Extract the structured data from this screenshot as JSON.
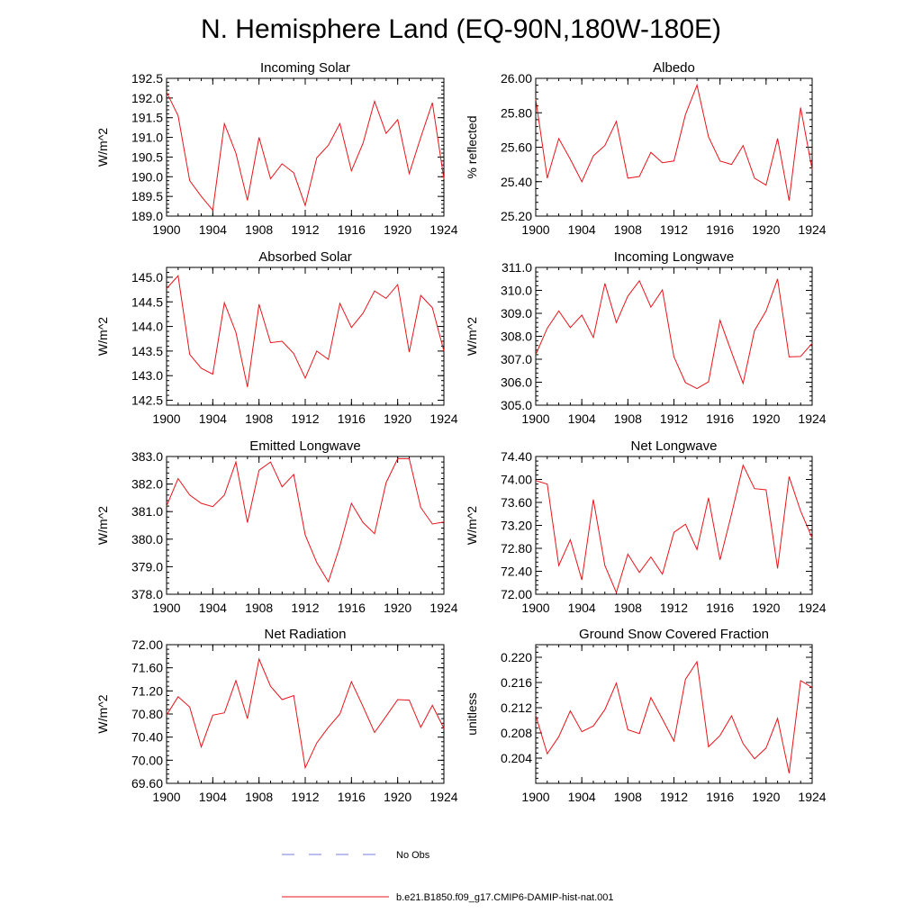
{
  "figure": {
    "title": "N. Hemisphere Land (EQ-90N,180W-180E)",
    "line_color": "#e8141b",
    "obs_color": "#7a7ae0",
    "legend": [
      {
        "label": "No Obs",
        "style": "dashed",
        "color": "#7a7ae0"
      },
      {
        "label": "b.e21.B1850.f09_g17.CMIP6-DAMIP-hist-nat.001",
        "style": "solid",
        "color": "#e8141b"
      }
    ]
  },
  "chart_data": [
    {
      "type": "line",
      "title": "Incoming Solar",
      "ylabel": "W/m^2",
      "xlim": [
        1900,
        1924
      ],
      "ylim": [
        189.0,
        192.5
      ],
      "xticks": [
        "1900",
        "1904",
        "1908",
        "1912",
        "1916",
        "1920",
        "1924"
      ],
      "yticks": [
        "189.0",
        "189.5",
        "190.0",
        "190.5",
        "191.0",
        "191.5",
        "192.0",
        "192.5"
      ],
      "x": [
        1900,
        1901,
        1902,
        1903,
        1904,
        1905,
        1906,
        1907,
        1908,
        1909,
        1910,
        1911,
        1912,
        1913,
        1914,
        1915,
        1916,
        1917,
        1918,
        1919,
        1920,
        1921,
        1922,
        1923,
        1924
      ],
      "series": [
        {
          "name": "b.e21.B1850.f09_g17.CMIP6-DAMIP-hist-nat.001",
          "values": [
            192.15,
            191.55,
            189.9,
            189.5,
            189.15,
            191.35,
            190.6,
            189.4,
            191.0,
            189.95,
            190.33,
            190.1,
            189.27,
            190.48,
            190.8,
            191.35,
            190.15,
            190.85,
            191.92,
            191.1,
            191.45,
            190.08,
            191.0,
            191.88,
            189.95
          ]
        }
      ]
    },
    {
      "type": "line",
      "title": "Albedo",
      "ylabel": "% reflected",
      "xlim": [
        1900,
        1924
      ],
      "ylim": [
        25.2,
        26.0
      ],
      "xticks": [
        "1900",
        "1904",
        "1908",
        "1912",
        "1916",
        "1920",
        "1924"
      ],
      "yticks": [
        "25.20",
        "25.40",
        "25.60",
        "25.80",
        "26.00"
      ],
      "x": [
        1900,
        1901,
        1902,
        1903,
        1904,
        1905,
        1906,
        1907,
        1908,
        1909,
        1910,
        1911,
        1912,
        1913,
        1914,
        1915,
        1916,
        1917,
        1918,
        1919,
        1920,
        1921,
        1922,
        1923,
        1924
      ],
      "series": [
        {
          "name": "b.e21.B1850.f09_g17.CMIP6-DAMIP-hist-nat.001",
          "values": [
            25.88,
            25.42,
            25.65,
            25.53,
            25.4,
            25.55,
            25.61,
            25.75,
            25.42,
            25.43,
            25.57,
            25.51,
            25.52,
            25.79,
            25.96,
            25.66,
            25.52,
            25.5,
            25.61,
            25.42,
            25.38,
            25.65,
            25.29,
            25.83,
            25.47
          ]
        }
      ]
    },
    {
      "type": "line",
      "title": "Absorbed Solar",
      "ylabel": "W/m^2",
      "xlim": [
        1900,
        1924
      ],
      "ylim": [
        142.4,
        145.2
      ],
      "xticks": [
        "1900",
        "1904",
        "1908",
        "1912",
        "1916",
        "1920",
        "1924"
      ],
      "yticks": [
        "142.5",
        "143.0",
        "143.5",
        "144.0",
        "144.5",
        "145.0"
      ],
      "x": [
        1900,
        1901,
        1902,
        1903,
        1904,
        1905,
        1906,
        1907,
        1908,
        1909,
        1910,
        1911,
        1912,
        1913,
        1914,
        1915,
        1916,
        1917,
        1918,
        1919,
        1920,
        1921,
        1922,
        1923,
        1924
      ],
      "series": [
        {
          "name": "b.e21.B1850.f09_g17.CMIP6-DAMIP-hist-nat.001",
          "values": [
            144.77,
            145.03,
            143.43,
            143.15,
            143.03,
            144.48,
            143.88,
            142.77,
            144.45,
            143.67,
            143.7,
            143.45,
            142.95,
            143.5,
            143.33,
            144.47,
            143.98,
            144.27,
            144.72,
            144.57,
            144.85,
            143.48,
            144.63,
            144.38,
            143.5
          ]
        }
      ]
    },
    {
      "type": "line",
      "title": "Incoming Longwave",
      "ylabel": "W/m^2",
      "xlim": [
        1900,
        1924
      ],
      "ylim": [
        305.0,
        311.0
      ],
      "xticks": [
        "1900",
        "1904",
        "1908",
        "1912",
        "1916",
        "1920",
        "1924"
      ],
      "yticks": [
        "305.0",
        "306.0",
        "307.0",
        "308.0",
        "309.0",
        "310.0",
        "311.0"
      ],
      "x": [
        1900,
        1901,
        1902,
        1903,
        1904,
        1905,
        1906,
        1907,
        1908,
        1909,
        1910,
        1911,
        1912,
        1913,
        1914,
        1915,
        1916,
        1917,
        1918,
        1919,
        1920,
        1921,
        1922,
        1923,
        1924
      ],
      "series": [
        {
          "name": "b.e21.B1850.f09_g17.CMIP6-DAMIP-hist-nat.001",
          "values": [
            307.2,
            308.35,
            309.1,
            308.38,
            308.92,
            307.95,
            310.3,
            308.6,
            309.75,
            310.42,
            309.27,
            310.02,
            307.1,
            305.98,
            305.72,
            306.02,
            308.7,
            307.3,
            305.95,
            308.25,
            309.1,
            310.5,
            307.1,
            307.12,
            307.7
          ]
        }
      ]
    },
    {
      "type": "line",
      "title": "Emitted Longwave",
      "ylabel": "W/m^2",
      "xlim": [
        1900,
        1924
      ],
      "ylim": [
        378.0,
        383.0
      ],
      "xticks": [
        "1900",
        "1904",
        "1908",
        "1912",
        "1916",
        "1920",
        "1924"
      ],
      "yticks": [
        "378.0",
        "379.0",
        "380.0",
        "381.0",
        "382.0",
        "383.0"
      ],
      "x": [
        1900,
        1901,
        1902,
        1903,
        1904,
        1905,
        1906,
        1907,
        1908,
        1909,
        1910,
        1911,
        1912,
        1913,
        1914,
        1915,
        1916,
        1917,
        1918,
        1919,
        1920,
        1921,
        1922,
        1923,
        1924
      ],
      "series": [
        {
          "name": "b.e21.B1850.f09_g17.CMIP6-DAMIP-hist-nat.001",
          "values": [
            381.2,
            382.2,
            381.6,
            381.3,
            381.18,
            381.6,
            382.8,
            380.6,
            382.5,
            382.8,
            381.9,
            382.35,
            380.15,
            379.15,
            378.45,
            379.75,
            381.3,
            380.6,
            380.2,
            382.05,
            382.92,
            382.92,
            381.15,
            380.55,
            380.62
          ]
        }
      ]
    },
    {
      "type": "line",
      "title": "Net Longwave",
      "ylabel": "W/m^2",
      "xlim": [
        1900,
        1924
      ],
      "ylim": [
        72.0,
        74.4
      ],
      "xticks": [
        "1900",
        "1904",
        "1908",
        "1912",
        "1916",
        "1920",
        "1924"
      ],
      "yticks": [
        "72.00",
        "72.40",
        "72.80",
        "73.20",
        "73.60",
        "74.00",
        "74.40"
      ],
      "x": [
        1900,
        1901,
        1902,
        1903,
        1904,
        1905,
        1906,
        1907,
        1908,
        1909,
        1910,
        1911,
        1912,
        1913,
        1914,
        1915,
        1916,
        1917,
        1918,
        1919,
        1920,
        1921,
        1922,
        1923,
        1924
      ],
      "series": [
        {
          "name": "b.e21.B1850.f09_g17.CMIP6-DAMIP-hist-nat.001",
          "values": [
            73.98,
            73.92,
            72.5,
            72.95,
            72.25,
            73.65,
            72.5,
            72.03,
            72.7,
            72.38,
            72.65,
            72.35,
            73.08,
            73.22,
            72.78,
            73.68,
            72.6,
            73.4,
            74.25,
            73.84,
            73.82,
            72.45,
            74.05,
            73.45,
            72.98
          ]
        }
      ]
    },
    {
      "type": "line",
      "title": "Net Radiation",
      "ylabel": "W/m^2",
      "xlim": [
        1900,
        1924
      ],
      "ylim": [
        69.6,
        72.0
      ],
      "xticks": [
        "1900",
        "1904",
        "1908",
        "1912",
        "1916",
        "1920",
        "1924"
      ],
      "yticks": [
        "69.60",
        "70.00",
        "70.40",
        "70.80",
        "71.20",
        "71.60",
        "72.00"
      ],
      "x": [
        1900,
        1901,
        1902,
        1903,
        1904,
        1905,
        1906,
        1907,
        1908,
        1909,
        1910,
        1911,
        1912,
        1913,
        1914,
        1915,
        1916,
        1917,
        1918,
        1919,
        1920,
        1921,
        1922,
        1923,
        1924
      ],
      "series": [
        {
          "name": "b.e21.B1850.f09_g17.CMIP6-DAMIP-hist-nat.001",
          "values": [
            70.78,
            71.1,
            70.92,
            70.23,
            70.78,
            70.82,
            71.38,
            70.72,
            71.75,
            71.28,
            71.05,
            71.12,
            69.87,
            70.3,
            70.57,
            70.8,
            71.36,
            70.93,
            70.48,
            70.76,
            71.05,
            71.04,
            70.57,
            70.95,
            70.55
          ]
        }
      ]
    },
    {
      "type": "line",
      "title": "Ground Snow Covered Fraction",
      "ylabel": "unitless",
      "xlim": [
        1900,
        1924
      ],
      "ylim": [
        0.2,
        0.222
      ],
      "xticks": [
        "1900",
        "1904",
        "1908",
        "1912",
        "1916",
        "1920",
        "1924"
      ],
      "yticks": [
        "0.204",
        "0.208",
        "0.212",
        "0.216",
        "0.220"
      ],
      "x": [
        1900,
        1901,
        1902,
        1903,
        1904,
        1905,
        1906,
        1907,
        1908,
        1909,
        1910,
        1911,
        1912,
        1913,
        1914,
        1915,
        1916,
        1917,
        1918,
        1919,
        1920,
        1921,
        1922,
        1923,
        1924
      ],
      "series": [
        {
          "name": "b.e21.B1850.f09_g17.CMIP6-DAMIP-hist-nat.001",
          "values": [
            0.2108,
            0.2047,
            0.2074,
            0.2115,
            0.2082,
            0.2091,
            0.2117,
            0.2159,
            0.2085,
            0.2079,
            0.2136,
            0.2102,
            0.2067,
            0.2165,
            0.2193,
            0.2058,
            0.2076,
            0.2107,
            0.2063,
            0.2039,
            0.2056,
            0.2103,
            0.2016,
            0.2163,
            0.2152
          ]
        }
      ]
    }
  ]
}
